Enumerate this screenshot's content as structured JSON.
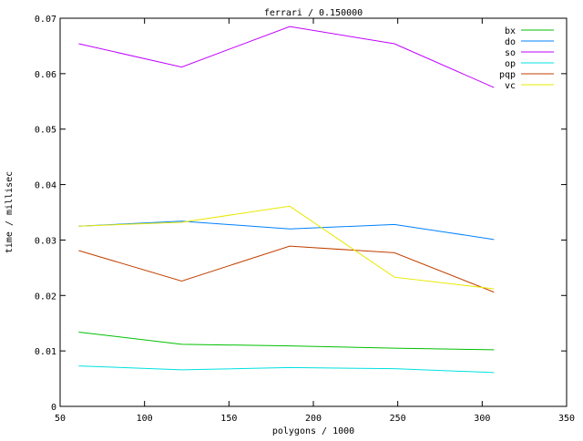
{
  "chart_data": {
    "type": "line",
    "title": "ferrari / 0.150000",
    "xlabel": "polygons / 1000",
    "ylabel": "time / millisec",
    "xlim": [
      50,
      350
    ],
    "ylim": [
      0,
      0.07
    ],
    "xticks": [
      "50",
      "100",
      "150",
      "200",
      "250",
      "300",
      "350"
    ],
    "yticks": [
      "0",
      "0.01",
      "0.02",
      "0.03",
      "0.04",
      "0.05",
      "0.06",
      "0.07"
    ],
    "grid": false,
    "legend_position": "top-right",
    "x": [
      61,
      122,
      186,
      248,
      307
    ],
    "series": [
      {
        "name": "bx",
        "color": "#00c000",
        "values": [
          0.0134,
          0.0112,
          0.0109,
          0.0105,
          0.0102
        ]
      },
      {
        "name": "do",
        "color": "#0080ff",
        "values": [
          0.0325,
          0.0334,
          0.032,
          0.0328,
          0.0301
        ]
      },
      {
        "name": "so",
        "color": "#c000ff",
        "values": [
          0.0654,
          0.0612,
          0.0685,
          0.0654,
          0.0575
        ]
      },
      {
        "name": "op",
        "color": "#00e0e0",
        "values": [
          0.0073,
          0.0066,
          0.007,
          0.0068,
          0.0061
        ]
      },
      {
        "name": "pqp",
        "color": "#c04000",
        "values": [
          0.0281,
          0.0226,
          0.0289,
          0.0277,
          0.0206
        ]
      },
      {
        "name": "vc",
        "color": "#e8e800",
        "values": [
          0.0325,
          0.0332,
          0.0361,
          0.0233,
          0.0212
        ]
      }
    ]
  }
}
